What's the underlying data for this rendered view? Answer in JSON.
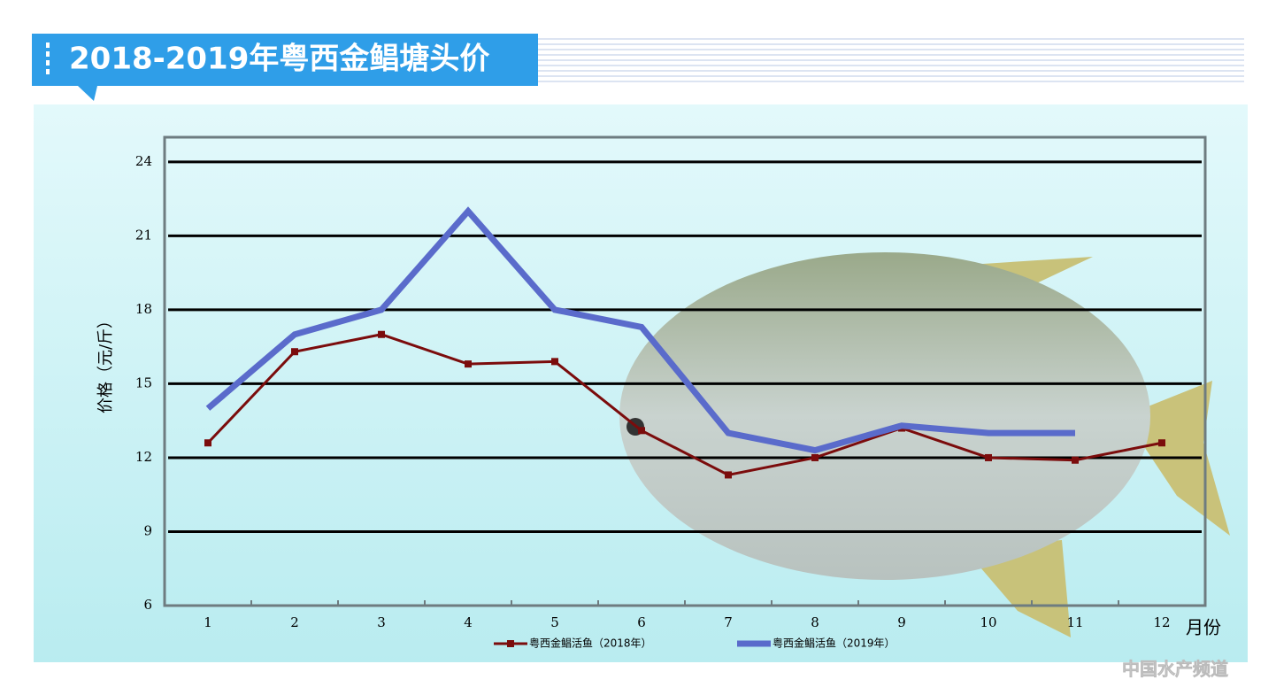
{
  "chart_data": {
    "type": "line",
    "title": "2018-2019年粤西金鲳塘头价",
    "y_label": "价格（元/斤）",
    "x_label": "月份",
    "categories": [
      "1",
      "2",
      "3",
      "4",
      "5",
      "6",
      "7",
      "8",
      "9",
      "10",
      "11",
      "12"
    ],
    "series": [
      {
        "name": "粤西金鲳活鱼（2018年）",
        "color": "#7b0c0c",
        "marker": "square",
        "values": [
          12.6,
          16.3,
          17.0,
          15.8,
          15.9,
          13.1,
          11.3,
          12.0,
          13.2,
          12.0,
          11.9,
          12.6
        ]
      },
      {
        "name": "粤西金鲳活鱼（2019年）",
        "color": "#5a6bcb",
        "marker": "none",
        "values": [
          14.0,
          17.0,
          18.0,
          22.0,
          18.0,
          17.3,
          13.0,
          12.3,
          13.3,
          13.0,
          13.0,
          null
        ]
      }
    ],
    "ylim": [
      6,
      25
    ],
    "yticks": [
      6,
      9,
      12,
      15,
      18,
      21,
      24
    ],
    "grid": true,
    "watermark": "中国水产频道"
  }
}
